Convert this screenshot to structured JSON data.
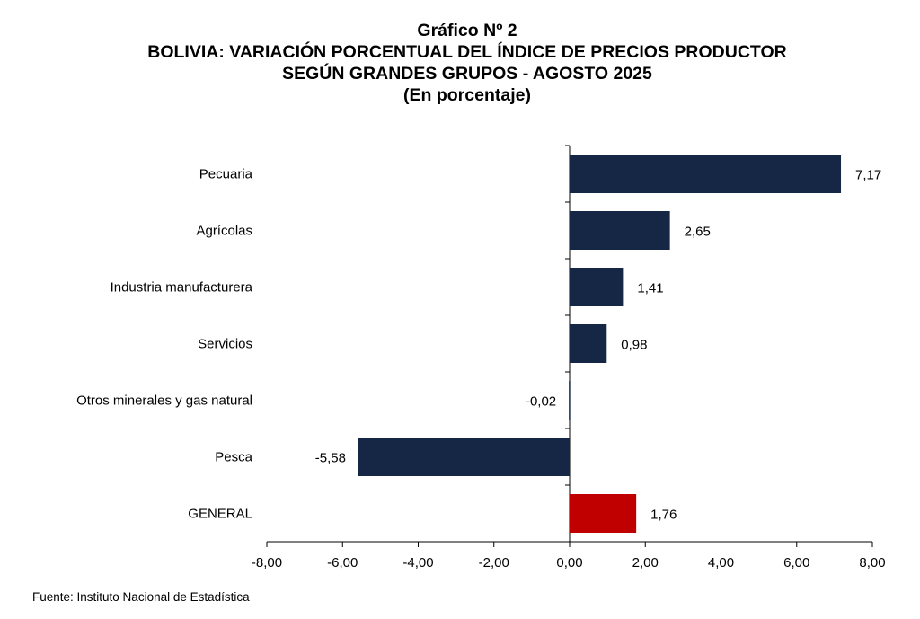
{
  "title_lines": [
    "Gráfico Nº 2",
    "BOLIVIA: VARIACIÓN PORCENTUAL DEL ÍNDICE DE PRECIOS PRODUCTOR",
    "SEGÚN GRANDES GRUPOS - AGOSTO 2025",
    "(En porcentaje)"
  ],
  "source": "Fuente: Instituto Nacional de Estadística",
  "chart_data": {
    "type": "bar",
    "orientation": "horizontal",
    "categories": [
      "Pecuaria",
      "Agrícolas",
      "Industria manufacturera",
      "Servicios",
      "Otros minerales y gas natural",
      "Pesca",
      "GENERAL"
    ],
    "values": [
      7.17,
      2.65,
      1.41,
      0.98,
      -0.02,
      -5.58,
      1.76
    ],
    "data_labels": [
      "7,17",
      "2,65",
      "1,41",
      "0,98",
      "-0,02",
      "-5,58",
      "1,76"
    ],
    "xlim": [
      -8,
      8
    ],
    "xticks": [
      -8,
      -6,
      -4,
      -2,
      0,
      2,
      4,
      6,
      8
    ],
    "xtick_labels": [
      "-8,00",
      "-6,00",
      "-4,00",
      "-2,00",
      "0,00",
      "2,00",
      "4,00",
      "6,00",
      "8,00"
    ],
    "grid": false,
    "colors": {
      "default_bar": "#152744",
      "highlight_bar": "#c00000",
      "highlight_category": "GENERAL"
    }
  }
}
